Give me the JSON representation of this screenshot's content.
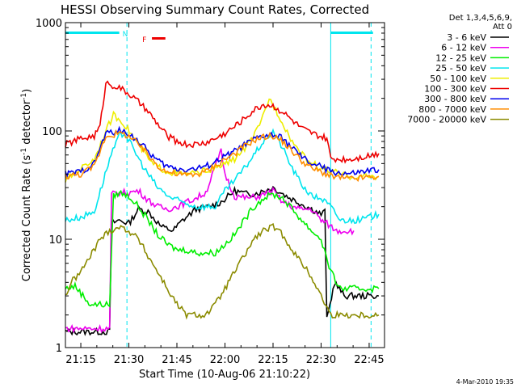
{
  "chart_data": {
    "type": "line",
    "title": "HESSI Observing Summary Count Rates, Corrected",
    "xlabel": "Start Time (10-Aug-06 21:10:22)",
    "ylabel_main": "Corrected Count Rate (s",
    "ylabel_exp1": "-1",
    "ylabel_mid": " detector",
    "ylabel_exp2": "-1",
    "ylabel_end": ")",
    "y_scale": "log",
    "ylim": [
      1,
      1000
    ],
    "xlim_minutes": [
      21.17,
      22.83
    ],
    "x_ticks": [
      {
        "label": "21:15",
        "h": 21.25
      },
      {
        "label": "21:30",
        "h": 21.5
      },
      {
        "label": "21:45",
        "h": 21.75
      },
      {
        "label": "22:00",
        "h": 22.0
      },
      {
        "label": "22:15",
        "h": 22.25
      },
      {
        "label": "22:30",
        "h": 22.5
      },
      {
        "label": "22:45",
        "h": 22.75
      }
    ],
    "y_ticks": [
      {
        "label": "1",
        "v": 1
      },
      {
        "label": "10",
        "v": 10
      },
      {
        "label": "100",
        "v": 100
      },
      {
        "label": "1000",
        "v": 1000
      }
    ],
    "legend_header": [
      "Det 1,3,4,5,6,9,",
      "Att 0"
    ],
    "legend_placement": "right",
    "timestamp": "4-Mar-2010 19:35",
    "flags": [
      {
        "label": "N",
        "color": "#00e5ee",
        "h0": 21.17,
        "h1": 21.45
      },
      {
        "label": "",
        "color": "#00e5ee",
        "h0": 22.55,
        "h1": 22.77
      },
      {
        "label": "F",
        "color": "#ee0000",
        "h0": 21.62,
        "h1": 21.69
      }
    ],
    "vertical_lines": [
      {
        "h": 21.49,
        "style": "dashed"
      },
      {
        "h": 22.55,
        "style": "solid"
      },
      {
        "h": 22.76,
        "style": "dashed"
      }
    ],
    "series": [
      {
        "name": "3 - 6 keV",
        "color": "#000000",
        "points": [
          [
            21.17,
            1.4
          ],
          [
            21.4,
            1.4
          ],
          [
            21.41,
            14
          ],
          [
            21.45,
            15
          ],
          [
            21.5,
            14
          ],
          [
            21.55,
            19
          ],
          [
            21.6,
            18
          ],
          [
            21.67,
            13
          ],
          [
            21.73,
            12
          ],
          [
            21.78,
            15
          ],
          [
            21.85,
            19
          ],
          [
            21.92,
            20
          ],
          [
            21.98,
            22
          ],
          [
            22.05,
            28
          ],
          [
            22.12,
            26
          ],
          [
            22.18,
            27
          ],
          [
            22.25,
            30
          ],
          [
            22.32,
            25
          ],
          [
            22.38,
            22
          ],
          [
            22.45,
            19
          ],
          [
            22.5,
            17
          ],
          [
            22.52,
            18
          ],
          [
            22.53,
            1.8
          ],
          [
            22.57,
            4
          ],
          [
            22.62,
            3
          ],
          [
            22.7,
            3
          ],
          [
            22.8,
            3
          ]
        ]
      },
      {
        "name": "6 - 12 keV",
        "color": "#ee00ee",
        "points": [
          [
            21.17,
            1.5
          ],
          [
            21.4,
            1.5
          ],
          [
            21.41,
            26
          ],
          [
            21.45,
            27
          ],
          [
            21.5,
            27
          ],
          [
            21.55,
            28
          ],
          [
            21.6,
            23
          ],
          [
            21.65,
            20
          ],
          [
            21.7,
            19
          ],
          [
            21.75,
            20
          ],
          [
            21.8,
            22
          ],
          [
            21.85,
            24
          ],
          [
            21.9,
            27
          ],
          [
            21.98,
            65
          ],
          [
            22.0,
            40
          ],
          [
            22.05,
            25
          ],
          [
            22.12,
            24
          ],
          [
            22.18,
            25
          ],
          [
            22.25,
            28
          ],
          [
            22.3,
            22
          ],
          [
            22.38,
            19
          ],
          [
            22.45,
            19
          ],
          [
            22.5,
            15
          ],
          [
            22.53,
            14
          ],
          [
            22.58,
            12
          ],
          [
            22.62,
            12
          ],
          [
            22.67,
            12
          ]
        ]
      },
      {
        "name": "12 - 25 keV",
        "color": "#00ee00",
        "points": [
          [
            21.17,
            3.5
          ],
          [
            21.22,
            3.7
          ],
          [
            21.3,
            2.5
          ],
          [
            21.4,
            2.5
          ],
          [
            21.42,
            25
          ],
          [
            21.45,
            27
          ],
          [
            21.5,
            25
          ],
          [
            21.55,
            20
          ],
          [
            21.6,
            15
          ],
          [
            21.65,
            11
          ],
          [
            21.7,
            9
          ],
          [
            21.75,
            8
          ],
          [
            21.8,
            8
          ],
          [
            21.85,
            7.5
          ],
          [
            21.9,
            7.5
          ],
          [
            21.95,
            7.5
          ],
          [
            22.0,
            9
          ],
          [
            22.05,
            11
          ],
          [
            22.1,
            15
          ],
          [
            22.15,
            20
          ],
          [
            22.2,
            24
          ],
          [
            22.25,
            26
          ],
          [
            22.3,
            24
          ],
          [
            22.35,
            19
          ],
          [
            22.4,
            15
          ],
          [
            22.45,
            12
          ],
          [
            22.5,
            10
          ],
          [
            22.55,
            5
          ],
          [
            22.6,
            3.5
          ],
          [
            22.7,
            3.5
          ],
          [
            22.8,
            3.5
          ]
        ]
      },
      {
        "name": "25 - 50 keV",
        "color": "#00e5ee",
        "points": [
          [
            21.17,
            15
          ],
          [
            21.25,
            16
          ],
          [
            21.32,
            18
          ],
          [
            21.4,
            55
          ],
          [
            21.45,
            90
          ],
          [
            21.48,
            95
          ],
          [
            21.52,
            70
          ],
          [
            21.58,
            45
          ],
          [
            21.65,
            30
          ],
          [
            21.72,
            24
          ],
          [
            21.78,
            22
          ],
          [
            21.85,
            20
          ],
          [
            21.9,
            20
          ],
          [
            21.95,
            20
          ],
          [
            22.0,
            28
          ],
          [
            22.05,
            35
          ],
          [
            22.1,
            45
          ],
          [
            22.15,
            60
          ],
          [
            22.2,
            80
          ],
          [
            22.25,
            100
          ],
          [
            22.3,
            70
          ],
          [
            22.35,
            45
          ],
          [
            22.4,
            32
          ],
          [
            22.45,
            25
          ],
          [
            22.5,
            24
          ],
          [
            22.55,
            20
          ],
          [
            22.6,
            15
          ],
          [
            22.7,
            15
          ],
          [
            22.8,
            17
          ]
        ]
      },
      {
        "name": "50 - 100 keV",
        "color": "#eeee00",
        "points": [
          [
            21.17,
            35
          ],
          [
            21.25,
            45
          ],
          [
            21.32,
            55
          ],
          [
            21.38,
            100
          ],
          [
            21.42,
            140
          ],
          [
            21.47,
            120
          ],
          [
            21.55,
            75
          ],
          [
            21.62,
            50
          ],
          [
            21.7,
            42
          ],
          [
            21.78,
            40
          ],
          [
            21.85,
            41
          ],
          [
            21.95,
            45
          ],
          [
            22.05,
            55
          ],
          [
            22.12,
            75
          ],
          [
            22.18,
            110
          ],
          [
            22.23,
            200
          ],
          [
            22.28,
            140
          ],
          [
            22.35,
            80
          ],
          [
            22.42,
            55
          ],
          [
            22.5,
            45
          ],
          [
            22.56,
            42
          ],
          [
            22.65,
            38
          ],
          [
            22.8,
            38
          ]
        ]
      },
      {
        "name": "100 - 300 keV",
        "color": "#ee0000",
        "points": [
          [
            21.17,
            75
          ],
          [
            21.25,
            85
          ],
          [
            21.32,
            90
          ],
          [
            21.35,
            110
          ],
          [
            21.38,
            280
          ],
          [
            21.45,
            250
          ],
          [
            21.5,
            220
          ],
          [
            21.55,
            185
          ],
          [
            21.6,
            150
          ],
          [
            21.65,
            115
          ],
          [
            21.7,
            90
          ],
          [
            21.75,
            80
          ],
          [
            21.8,
            75
          ],
          [
            21.85,
            75
          ],
          [
            21.9,
            78
          ],
          [
            21.95,
            85
          ],
          [
            22.0,
            95
          ],
          [
            22.05,
            110
          ],
          [
            22.1,
            130
          ],
          [
            22.15,
            155
          ],
          [
            22.2,
            175
          ],
          [
            22.25,
            170
          ],
          [
            22.3,
            150
          ],
          [
            22.35,
            125
          ],
          [
            22.4,
            105
          ],
          [
            22.45,
            95
          ],
          [
            22.5,
            88
          ],
          [
            22.53,
            85
          ],
          [
            22.55,
            55
          ],
          [
            22.65,
            55
          ],
          [
            22.72,
            58
          ],
          [
            22.8,
            62
          ]
        ]
      },
      {
        "name": "300 - 800 keV",
        "color": "#0000ee",
        "points": [
          [
            21.17,
            40
          ],
          [
            21.25,
            42
          ],
          [
            21.32,
            50
          ],
          [
            21.38,
            95
          ],
          [
            21.45,
            100
          ],
          [
            21.5,
            95
          ],
          [
            21.55,
            80
          ],
          [
            21.6,
            65
          ],
          [
            21.65,
            53
          ],
          [
            21.7,
            47
          ],
          [
            21.75,
            45
          ],
          [
            21.8,
            44
          ],
          [
            21.85,
            45
          ],
          [
            21.9,
            47
          ],
          [
            21.95,
            52
          ],
          [
            22.0,
            58
          ],
          [
            22.05,
            65
          ],
          [
            22.1,
            74
          ],
          [
            22.15,
            83
          ],
          [
            22.2,
            90
          ],
          [
            22.25,
            92
          ],
          [
            22.3,
            85
          ],
          [
            22.35,
            70
          ],
          [
            22.4,
            57
          ],
          [
            22.45,
            50
          ],
          [
            22.5,
            47
          ],
          [
            22.55,
            42
          ],
          [
            22.65,
            40
          ],
          [
            22.8,
            44
          ]
        ]
      },
      {
        "name": "800 - 7000 keV",
        "color": "#ff8c00",
        "points": [
          [
            21.17,
            38
          ],
          [
            21.25,
            40
          ],
          [
            21.32,
            47
          ],
          [
            21.38,
            90
          ],
          [
            21.45,
            95
          ],
          [
            21.5,
            90
          ],
          [
            21.55,
            75
          ],
          [
            21.6,
            60
          ],
          [
            21.65,
            48
          ],
          [
            21.7,
            42
          ],
          [
            21.75,
            40
          ],
          [
            21.8,
            39
          ],
          [
            21.85,
            40
          ],
          [
            21.9,
            42
          ],
          [
            21.95,
            48
          ],
          [
            22.0,
            55
          ],
          [
            22.05,
            62
          ],
          [
            22.1,
            72
          ],
          [
            22.15,
            82
          ],
          [
            22.2,
            88
          ],
          [
            22.25,
            90
          ],
          [
            22.3,
            80
          ],
          [
            22.35,
            65
          ],
          [
            22.4,
            53
          ],
          [
            22.45,
            45
          ],
          [
            22.5,
            42
          ],
          [
            22.55,
            38
          ],
          [
            22.65,
            36
          ],
          [
            22.8,
            38
          ]
        ]
      },
      {
        "name": "7000 - 20000 keV",
        "color": "#8b8b00",
        "points": [
          [
            21.17,
            3
          ],
          [
            21.2,
            4
          ],
          [
            21.25,
            5
          ],
          [
            21.3,
            7
          ],
          [
            21.35,
            10
          ],
          [
            21.4,
            12
          ],
          [
            21.45,
            13
          ],
          [
            21.5,
            12
          ],
          [
            21.55,
            10
          ],
          [
            21.6,
            7
          ],
          [
            21.65,
            5
          ],
          [
            21.7,
            3.5
          ],
          [
            21.75,
            2.5
          ],
          [
            21.8,
            2
          ],
          [
            21.85,
            2
          ],
          [
            21.9,
            2
          ],
          [
            21.95,
            2.5
          ],
          [
            22.0,
            3.5
          ],
          [
            22.05,
            5
          ],
          [
            22.1,
            7
          ],
          [
            22.15,
            10
          ],
          [
            22.2,
            12
          ],
          [
            22.25,
            13
          ],
          [
            22.3,
            11
          ],
          [
            22.35,
            8
          ],
          [
            22.4,
            6
          ],
          [
            22.45,
            4.5
          ],
          [
            22.5,
            3
          ],
          [
            22.55,
            2
          ],
          [
            22.6,
            2
          ],
          [
            22.7,
            2
          ],
          [
            22.8,
            2
          ]
        ]
      }
    ]
  }
}
